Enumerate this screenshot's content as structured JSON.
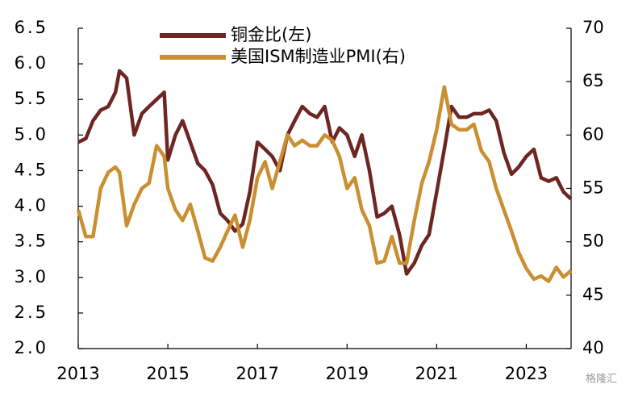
{
  "chart_data": {
    "type": "line",
    "x": [
      2013.0,
      2013.17,
      2013.33,
      2013.5,
      2013.67,
      2013.83,
      2013.92,
      2014.08,
      2014.25,
      2014.42,
      2014.58,
      2014.75,
      2014.92,
      2015.0,
      2015.17,
      2015.33,
      2015.5,
      2015.67,
      2015.83,
      2016.0,
      2016.17,
      2016.33,
      2016.5,
      2016.67,
      2016.83,
      2017.0,
      2017.17,
      2017.33,
      2017.5,
      2017.67,
      2017.83,
      2018.0,
      2018.17,
      2018.33,
      2018.5,
      2018.67,
      2018.83,
      2019.0,
      2019.17,
      2019.33,
      2019.5,
      2019.67,
      2019.83,
      2020.0,
      2020.17,
      2020.33,
      2020.5,
      2020.67,
      2020.83,
      2021.0,
      2021.17,
      2021.33,
      2021.5,
      2021.67,
      2021.83,
      2022.0,
      2022.17,
      2022.33,
      2022.5,
      2022.67,
      2022.83,
      2023.0,
      2023.17,
      2023.33,
      2023.5,
      2023.67,
      2023.83,
      2024.0
    ],
    "series": [
      {
        "name": "铜金比(左)",
        "color": "#6e2623",
        "axis": "y",
        "values": [
          4.9,
          4.95,
          5.2,
          5.35,
          5.4,
          5.6,
          5.9,
          5.8,
          5.0,
          5.3,
          5.4,
          5.5,
          5.6,
          4.65,
          5.0,
          5.2,
          4.9,
          4.6,
          4.5,
          4.3,
          3.9,
          3.8,
          3.65,
          3.75,
          4.2,
          4.9,
          4.8,
          4.7,
          4.5,
          5.0,
          5.2,
          5.4,
          5.3,
          5.25,
          5.4,
          4.9,
          5.1,
          5.0,
          4.7,
          5.0,
          4.5,
          3.85,
          3.9,
          4.0,
          3.6,
          3.05,
          3.2,
          3.45,
          3.6,
          4.2,
          4.8,
          5.4,
          5.25,
          5.25,
          5.3,
          5.3,
          5.35,
          5.2,
          4.75,
          4.45,
          4.55,
          4.7,
          4.8,
          4.4,
          4.35,
          4.4,
          4.2,
          4.1
        ]
      },
      {
        "name": "美国ISM制造业PMI(右)",
        "color": "#c98f30",
        "axis": "y2",
        "values": [
          53,
          50.5,
          50.5,
          55,
          56.5,
          57,
          56.5,
          51.5,
          53.5,
          55,
          55.5,
          59,
          58,
          55,
          53,
          52,
          53.5,
          51,
          48.5,
          48.2,
          49.5,
          51,
          52.5,
          49.5,
          52,
          56,
          57.5,
          55,
          57.5,
          60,
          59,
          59.5,
          59,
          59,
          60,
          59.5,
          58,
          55,
          56,
          53,
          51.5,
          48,
          48.2,
          50.5,
          48,
          48,
          52,
          55.5,
          57.5,
          60.5,
          64.5,
          61,
          60.5,
          60.5,
          61,
          58.5,
          57.5,
          55,
          53,
          51,
          49,
          47.5,
          46.5,
          46.8,
          46.3,
          47.6,
          46.7,
          47.3
        ]
      }
    ],
    "xlim": [
      2013,
      2024
    ],
    "xticks": [
      2013,
      2015,
      2017,
      2019,
      2021,
      2023
    ],
    "ylim": [
      2.0,
      6.5
    ],
    "yticks": [
      {
        "value": 2.0,
        "label": "2.0"
      },
      2.5,
      {
        "value": 3.0,
        "label": "3.0"
      },
      3.5,
      {
        "value": 4.0,
        "label": "4.0"
      },
      4.5,
      {
        "value": 5.0,
        "label": "5.0"
      },
      5.5,
      {
        "value": 6.0,
        "label": "6.0"
      },
      6.5
    ],
    "y2lim": [
      40,
      70
    ],
    "y2ticks": [
      40,
      45,
      50,
      55,
      60,
      65,
      70
    ],
    "grid": false,
    "legend": "top",
    "watermark": "格隆汇"
  }
}
